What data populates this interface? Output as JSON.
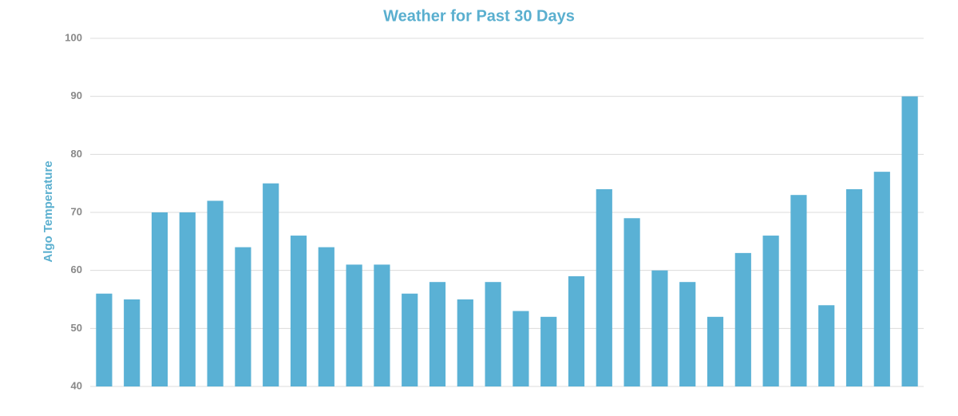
{
  "chart_data": {
    "type": "bar",
    "title": "Weather for Past 30 Days",
    "y_label": "Algo Temperature",
    "categories": [
      null,
      null,
      null,
      null,
      null,
      null,
      null,
      null,
      null,
      null,
      null,
      null,
      null,
      null,
      null,
      null,
      null,
      null,
      null,
      null,
      null,
      null,
      null,
      null,
      null,
      null,
      null,
      null,
      null,
      null
    ],
    "values": [
      56,
      55,
      70,
      70,
      72,
      64,
      75,
      66,
      64,
      61,
      61,
      56,
      58,
      55,
      58,
      53,
      52,
      59,
      74,
      69,
      60,
      58,
      52,
      63,
      66,
      73,
      54,
      74,
      77,
      90
    ],
    "color": "#5ab1d5",
    "ylim": [
      40,
      100
    ],
    "yticks": [
      40,
      50,
      60,
      70,
      80,
      90,
      100
    ],
    "grid": true
  }
}
